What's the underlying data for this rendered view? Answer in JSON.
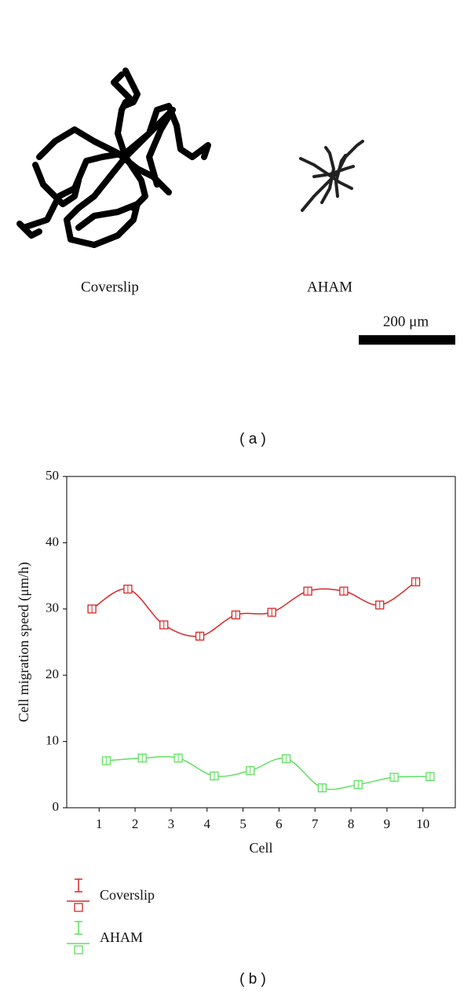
{
  "panel_a": {
    "labels": [
      "Coverslip",
      "AHAM"
    ],
    "scale_bar": "200 μm",
    "caption": "( a )"
  },
  "chart_data": {
    "type": "line",
    "caption": "( b )",
    "xlabel": "Cell",
    "ylabel": "Cell migration speed (μm/h)",
    "xlim": [
      0.1,
      10.9
    ],
    "ylim": [
      0,
      50
    ],
    "xticks": [
      1,
      2,
      3,
      4,
      5,
      6,
      7,
      8,
      9,
      10
    ],
    "yticks": [
      0,
      10,
      20,
      30,
      40,
      50
    ],
    "series": [
      {
        "name": "Coverslip",
        "color": "#d62828",
        "x": [
          0.8,
          1.8,
          2.8,
          3.8,
          4.8,
          5.8,
          6.8,
          7.8,
          8.8,
          9.8
        ],
        "values": [
          30,
          33,
          27.6,
          25.9,
          29.1,
          29.5,
          32.7,
          32.7,
          30.6,
          34.1
        ]
      },
      {
        "name": "AHAM",
        "color": "#5ee05e",
        "x": [
          1.2,
          2.2,
          3.2,
          4.2,
          5.2,
          6.2,
          7.2,
          8.2,
          9.2,
          10.2
        ],
        "values": [
          7.1,
          7.5,
          7.5,
          4.8,
          5.6,
          7.4,
          3,
          3.5,
          4.6,
          4.7
        ]
      }
    ]
  }
}
